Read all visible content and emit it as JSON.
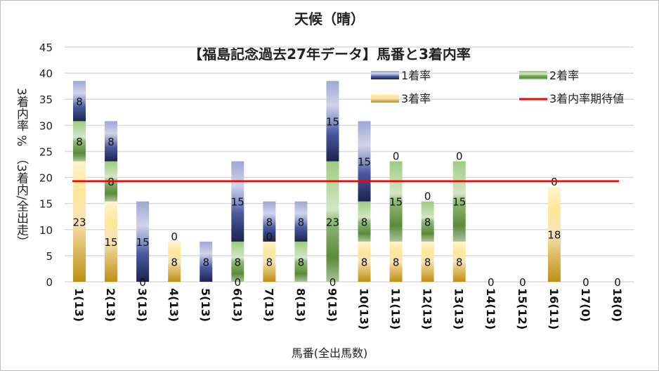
{
  "chart_data": {
    "type": "bar",
    "stacked": true,
    "title": "天候（晴）",
    "subtitle": "【福島記念過去27年データ】馬番と3着内率",
    "xlabel": "馬番(全出馬数)",
    "ylabel": "3着内率 %　（3着内/全出走）",
    "ylim": [
      0,
      45
    ],
    "yticks": [
      0,
      5,
      10,
      15,
      20,
      25,
      30,
      35,
      40,
      45
    ],
    "grid": true,
    "legend_position": "top-right",
    "categories": [
      "1(13)",
      "2(13)",
      "3(13)",
      "4(13)",
      "5(13)",
      "6(13)",
      "7(13)",
      "8(13)",
      "9(13)",
      "10(13)",
      "11(13)",
      "12(13)",
      "13(13)",
      "14(13)",
      "15(12)",
      "16(11)",
      "17(0)",
      "18(0)"
    ],
    "series": [
      {
        "name": "3着率",
        "color": "#c9961e",
        "values": [
          23.1,
          15.4,
          0,
          7.7,
          0,
          0,
          7.7,
          0,
          0,
          7.7,
          7.7,
          7.7,
          7.7,
          0,
          0,
          18.2,
          0,
          0
        ],
        "labels": [
          "23",
          "15",
          "0",
          "8",
          "",
          "0",
          "8",
          "",
          "0",
          "8",
          "8",
          "8",
          "8",
          "0",
          "0",
          "18",
          "0",
          "0"
        ]
      },
      {
        "name": "2着率",
        "color": "#70ad47",
        "values": [
          7.7,
          7.7,
          0,
          0,
          0,
          7.7,
          0,
          7.7,
          23.1,
          7.7,
          15.4,
          7.7,
          15.4,
          0,
          0,
          0,
          0,
          0
        ],
        "labels": [
          "8",
          "8",
          "",
          "0",
          "",
          "8",
          "0",
          "8",
          "23",
          "8",
          "15",
          "8",
          "15",
          "",
          "",
          "",
          "",
          ""
        ]
      },
      {
        "name": "1着率",
        "color": "#2f3a80",
        "values": [
          7.7,
          7.7,
          15.4,
          0,
          7.7,
          15.4,
          7.7,
          7.7,
          15.4,
          15.4,
          0,
          0,
          0,
          0,
          0,
          0,
          0,
          0
        ],
        "labels": [
          "8",
          "8",
          "15",
          "",
          "8",
          "15",
          "8",
          "8",
          "15",
          "15",
          "0",
          "0",
          "0",
          "",
          "",
          "0",
          "",
          ""
        ]
      }
    ],
    "reference_line": {
      "name": "3着内率期待値",
      "color": "#ff0000",
      "value": 19.3
    }
  }
}
